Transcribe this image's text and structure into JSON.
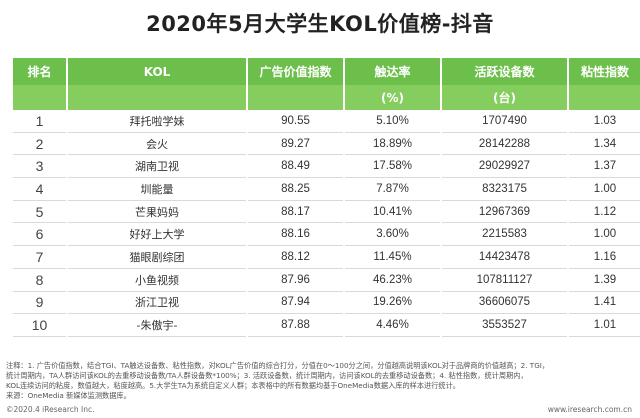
{
  "title": "2020年5月大学生KOL价值榜-抖音",
  "table": {
    "headers": [
      "排名",
      "KOL",
      "广告价值指数",
      "触达率",
      "活跃设备数",
      "粘性指数"
    ],
    "subheaders": [
      "",
      "",
      "",
      "(%)",
      "(台)",
      ""
    ],
    "rows": [
      [
        "1",
        "拜托啦学妹",
        "90.55",
        "5.10%",
        "1707490",
        "1.03"
      ],
      [
        "2",
        "会火",
        "89.27",
        "18.89%",
        "28142288",
        "1.34"
      ],
      [
        "3",
        "湖南卫视",
        "88.49",
        "17.58%",
        "29029927",
        "1.37"
      ],
      [
        "4",
        "圳能量",
        "88.25",
        "7.87%",
        "8323175",
        "1.00"
      ],
      [
        "5",
        "芒果妈妈",
        "88.17",
        "10.41%",
        "12967369",
        "1.12"
      ],
      [
        "6",
        "好好上大学",
        "88.16",
        "3.60%",
        "2215583",
        "1.00"
      ],
      [
        "7",
        "猫眼剧综团",
        "88.12",
        "11.45%",
        "14423478",
        "1.16"
      ],
      [
        "8",
        "小鱼视频",
        "87.96",
        "46.23%",
        "107811127",
        "1.39"
      ],
      [
        "9",
        "浙江卫视",
        "87.94",
        "19.26%",
        "36606075",
        "1.41"
      ],
      [
        "10",
        "-朱傲宇-",
        "87.88",
        "4.46%",
        "3553527",
        "1.01"
      ]
    ]
  },
  "notes": [
    "注释：1. 广告价值指数，结合TGI、TA触达设备数、粘性指数，对KOL广告价值的综合打分，分值在0～100分之间，分值越高说明该KOL对于品牌商的价值越高；2. TGI，",
    "统计周期内，TA人群访问该KOL的去重移动设备数/TA人群设备数*100%；3. 活跃设备数，统计周期内，访问该KOL的去重移动设备数；4. 粘性指数，统计周期内，",
    "KOL连续访问的粘度，数值越大，粘度越高。5.大学生TA为系统自定义人群；本表格中的所有数据均基于OneMedia数据入库的样本进行统计。",
    "来源：OneMedia 新媒体监测数据库。"
  ],
  "footer": {
    "left": "©2020.4 iResearch Inc.",
    "right": "www.iresearch.com.cn"
  }
}
